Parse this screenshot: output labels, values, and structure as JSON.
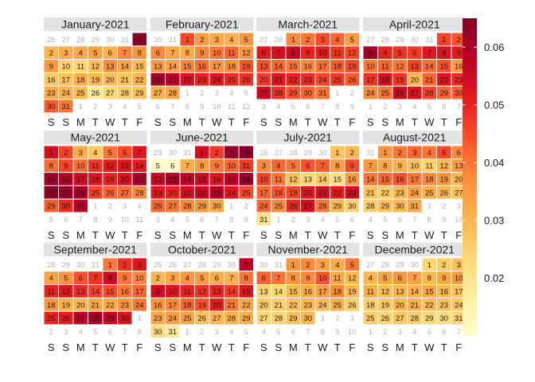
{
  "chart_data": {
    "type": "heatmap",
    "layout": "calendar",
    "year": 2021,
    "week_start": "Saturday",
    "weekday_labels": [
      "S",
      "S",
      "M",
      "T",
      "W",
      "T",
      "F"
    ],
    "colorbar": {
      "min": 0.01,
      "max": 0.065,
      "ticks": [
        0.02,
        0.03,
        0.04,
        0.05,
        0.06
      ],
      "tick_labels": [
        "0.02",
        "0.03",
        "0.04",
        "0.05",
        "0.06"
      ],
      "colors": [
        "#ffffcc",
        "#ffeda0",
        "#fed976",
        "#feb24c",
        "#fd8d3c",
        "#fc4e2a",
        "#e31a1c",
        "#bd0026",
        "#800026"
      ]
    },
    "months": [
      {
        "title": "January-2021",
        "values": [
          0.064,
          0.03,
          0.032,
          0.033,
          0.034,
          0.031,
          0.038,
          0.036,
          0.035,
          0.025,
          0.024,
          0.028,
          0.037,
          0.033,
          0.029,
          0.027,
          0.028,
          0.032,
          0.03,
          0.029,
          0.028,
          0.031,
          0.033,
          0.031,
          0.029,
          0.018,
          0.024,
          0.026,
          0.028,
          0.043,
          0.04
        ]
      },
      {
        "title": "February-2021",
        "values": [
          0.045,
          0.035,
          0.033,
          0.031,
          0.036,
          0.038,
          0.033,
          0.032,
          0.038,
          0.04,
          0.042,
          0.036,
          0.035,
          0.034,
          0.038,
          0.041,
          0.036,
          0.037,
          0.044,
          0.061,
          0.058,
          0.053,
          0.05,
          0.052,
          0.049,
          0.048,
          0.031,
          0.033
        ]
      },
      {
        "title": "March-2021",
        "values": [
          0.038,
          0.04,
          0.045,
          0.042,
          0.035,
          0.052,
          0.054,
          0.056,
          0.05,
          0.051,
          0.048,
          0.046,
          0.044,
          0.042,
          0.04,
          0.038,
          0.041,
          0.043,
          0.045,
          0.047,
          0.052,
          0.05,
          0.049,
          0.046,
          0.047,
          0.043,
          0.055,
          0.048,
          0.044,
          0.042,
          0.04
        ]
      },
      {
        "title": "April-2021",
        "values": [
          0.046,
          0.044,
          0.061,
          0.05,
          0.048,
          0.047,
          0.052,
          0.053,
          0.051,
          0.04,
          0.042,
          0.04,
          0.046,
          0.041,
          0.044,
          0.035,
          0.048,
          0.054,
          0.048,
          0.03,
          0.042,
          0.052,
          0.049,
          0.038,
          0.04,
          0.055,
          0.053,
          0.046,
          0.042,
          0.043
        ]
      },
      {
        "title": "May-2021",
        "values": [
          0.054,
          0.046,
          0.032,
          0.027,
          0.04,
          0.045,
          0.052,
          0.041,
          0.046,
          0.041,
          0.048,
          0.051,
          0.052,
          0.051,
          0.061,
          0.059,
          0.055,
          0.052,
          0.05,
          0.053,
          0.06,
          0.063,
          0.062,
          0.061,
          0.046,
          0.042,
          0.041,
          0.038,
          0.043,
          0.049,
          0.058
        ]
      },
      {
        "title": "June-2021",
        "values": [
          0.054,
          0.047,
          0.062,
          0.064,
          0.011,
          0.011,
          0.032,
          0.035,
          0.04,
          0.042,
          0.047,
          0.056,
          0.06,
          0.057,
          0.055,
          0.052,
          0.058,
          0.062,
          0.052,
          0.05,
          0.054,
          0.056,
          0.059,
          0.052,
          0.045,
          0.042,
          0.04,
          0.038,
          0.036,
          0.033
        ]
      },
      {
        "title": "July-2021",
        "values": [
          0.028,
          0.03,
          0.038,
          0.042,
          0.04,
          0.044,
          0.043,
          0.035,
          0.045,
          0.046,
          0.04,
          0.028,
          0.024,
          0.027,
          0.021,
          0.035,
          0.042,
          0.044,
          0.046,
          0.052,
          0.054,
          0.051,
          0.055,
          0.042,
          0.038,
          0.049,
          0.054,
          0.04,
          0.03,
          0.025,
          0.02
        ]
      },
      {
        "title": "August-2021",
        "values": [
          0.036,
          0.04,
          0.042,
          0.04,
          0.045,
          0.038,
          0.036,
          0.033,
          0.031,
          0.028,
          0.025,
          0.03,
          0.035,
          0.04,
          0.042,
          0.044,
          0.04,
          0.038,
          0.036,
          0.03,
          0.028,
          0.026,
          0.03,
          0.034,
          0.032,
          0.03,
          0.028,
          0.026,
          0.028,
          0.03,
          0.033
        ]
      },
      {
        "title": "September-2021",
        "values": [
          0.04,
          0.048,
          0.052,
          0.034,
          0.036,
          0.044,
          0.048,
          0.055,
          0.04,
          0.038,
          0.05,
          0.052,
          0.049,
          0.046,
          0.045,
          0.04,
          0.042,
          0.036,
          0.031,
          0.03,
          0.033,
          0.032,
          0.036,
          0.04,
          0.05,
          0.051,
          0.058,
          0.06,
          0.057,
          0.053
        ]
      },
      {
        "title": "October-2021",
        "values": [
          0.058,
          0.03,
          0.033,
          0.036,
          0.035,
          0.032,
          0.031,
          0.04,
          0.055,
          0.052,
          0.05,
          0.048,
          0.05,
          0.047,
          0.052,
          0.037,
          0.038,
          0.042,
          0.044,
          0.051,
          0.04,
          0.033,
          0.033,
          0.035,
          0.034,
          0.028,
          0.03,
          0.031,
          0.032,
          0.022,
          0.018
        ]
      },
      {
        "title": "November-2021",
        "values": [
          0.036,
          0.038,
          0.034,
          0.032,
          0.04,
          0.042,
          0.04,
          0.036,
          0.038,
          0.044,
          0.033,
          0.03,
          0.025,
          0.024,
          0.03,
          0.032,
          0.035,
          0.038,
          0.03,
          0.027,
          0.026,
          0.028,
          0.03,
          0.029,
          0.031,
          0.026,
          0.024,
          0.025,
          0.028,
          0.03
        ]
      },
      {
        "title": "December-2021",
        "values": [
          0.024,
          0.026,
          0.028,
          0.03,
          0.034,
          0.036,
          0.034,
          0.03,
          0.033,
          0.036,
          0.032,
          0.029,
          0.03,
          0.031,
          0.033,
          0.03,
          0.028,
          0.026,
          0.027,
          0.03,
          0.031,
          0.029,
          0.028,
          0.027,
          0.026,
          0.025,
          0.027,
          0.026,
          0.024,
          0.023,
          0.025
        ]
      }
    ]
  }
}
